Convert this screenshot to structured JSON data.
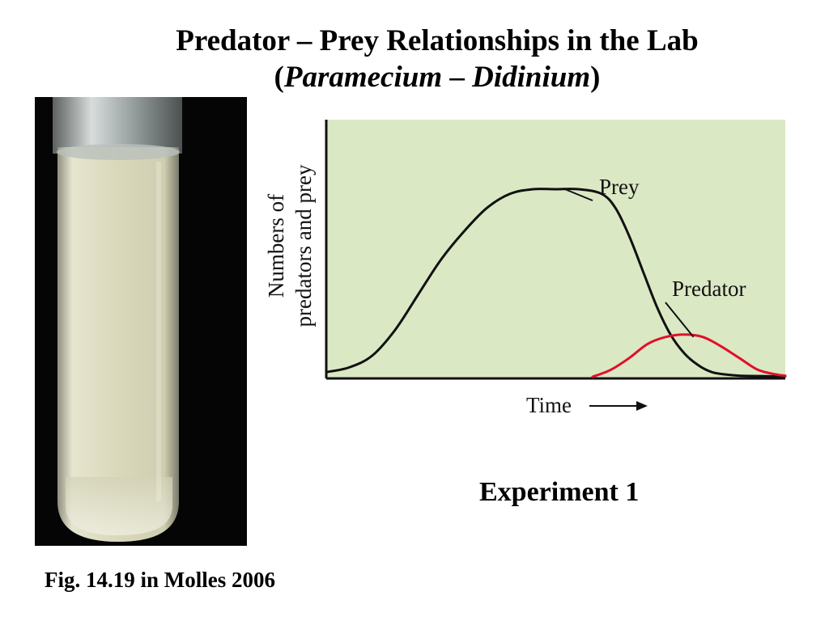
{
  "slide": {
    "title": "Predator – Prey Relationships in the Lab",
    "subtitle_prefix": "(",
    "subtitle_genus_1": "Paramecium",
    "subtitle_dash": " – ",
    "subtitle_genus_2": "Didinium",
    "subtitle_suffix": ")",
    "experiment_label": "Experiment 1",
    "caption": "Fig. 14.19 in Molles 2006"
  },
  "chart_data": {
    "type": "line",
    "title": "",
    "xlabel": "Time",
    "ylabel_line1": "Numbers of",
    "ylabel_line2": "predators and prey",
    "x_ticks": [],
    "y_ticks": [],
    "grid": false,
    "xlim": [
      0,
      100
    ],
    "ylim": [
      0,
      100
    ],
    "background_color": "#dbe8c4",
    "series": [
      {
        "name": "Prey",
        "color": "#111111",
        "x": [
          0,
          5,
          10,
          15,
          20,
          25,
          30,
          35,
          40,
          45,
          50,
          55,
          60,
          63,
          66,
          69,
          72,
          75,
          78,
          81,
          84,
          87,
          90,
          95,
          100
        ],
        "y": [
          2,
          4,
          9,
          20,
          35,
          50,
          62,
          72,
          78,
          80,
          80,
          80,
          78,
          72,
          60,
          45,
          30,
          18,
          10,
          5,
          2,
          1,
          0.5,
          0.3,
          0.2
        ]
      },
      {
        "name": "Predator",
        "color": "#e0102a",
        "x": [
          58,
          62,
          66,
          70,
          74,
          78,
          82,
          86,
          90,
          94,
          98,
          100
        ],
        "y": [
          0,
          3,
          8,
          14,
          17,
          18,
          17,
          13,
          8,
          3,
          1,
          0.5
        ]
      }
    ]
  }
}
